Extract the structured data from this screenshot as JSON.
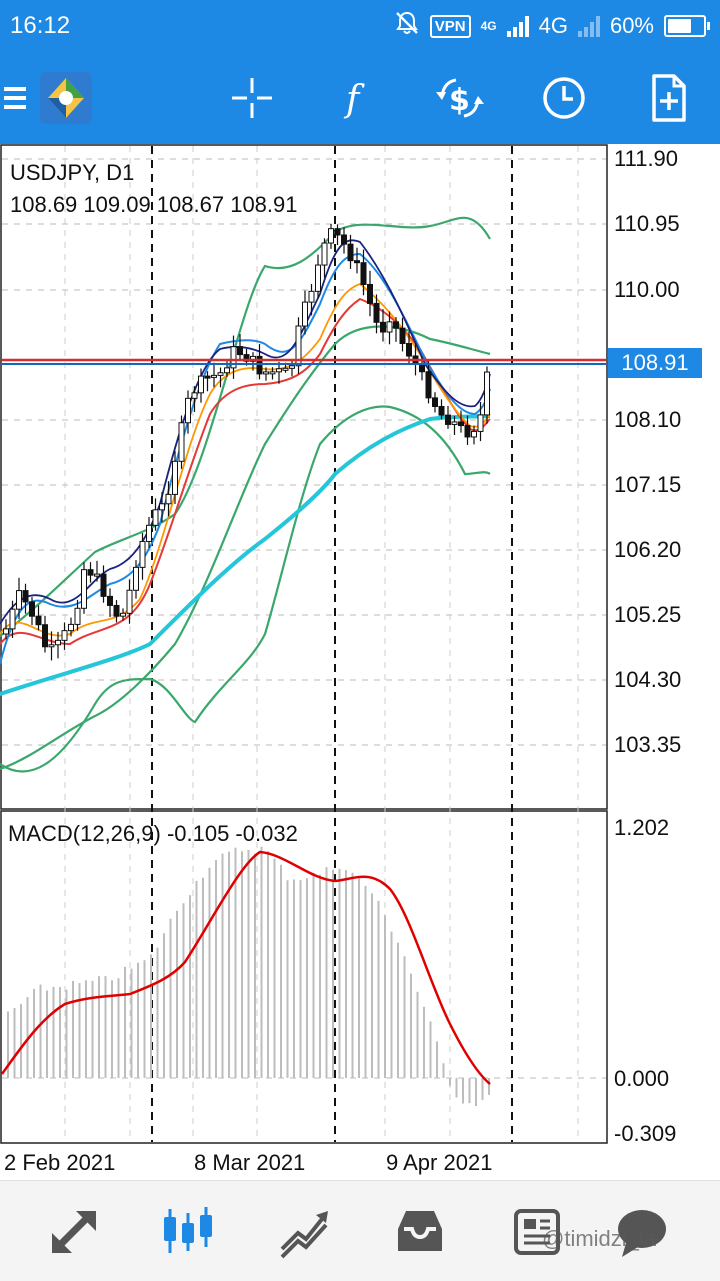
{
  "status_bar": {
    "time": "16:12",
    "vpn": "VPN",
    "network_small": "4G",
    "network": "4G",
    "battery": "60%"
  },
  "toolbar": {
    "icons": [
      "menu-icon",
      "app-logo",
      "crosshair-icon",
      "indicators-icon",
      "trade-icon",
      "timeframe-icon",
      "new-order-icon"
    ]
  },
  "chart": {
    "symbol_line": "USDJPY, D1",
    "ohlc_line": "108.69 109.09 108.67 108.91",
    "price_labels": [
      "111.90",
      "110.95",
      "110.00",
      "108.10",
      "107.15",
      "106.20",
      "105.25",
      "104.30",
      "103.35"
    ],
    "current_price": "108.91",
    "macd_label": "MACD(12,26,9) -0.105 -0.032",
    "macd_labels": [
      "1.202",
      "0.000",
      "-0.309"
    ],
    "date_labels": [
      "2 Feb 2021",
      "8 Mar 2021",
      "9 Apr 2021"
    ],
    "colors": {
      "bid_line": "#d32f2f",
      "ask_line": "#1565c0",
      "bollinger": "#3aa76d",
      "ma_slow": "#26c6da",
      "ma_red": "#e53935",
      "ma_orange": "#ff9800",
      "ma_blue": "#1e88e5",
      "ma_dark_blue": "#1a237e",
      "macd_signal": "#e00000",
      "macd_hist": "#bdbdbd",
      "price_tag": "#1e88e5"
    }
  },
  "bottom_nav": {
    "items": [
      "quotes-icon",
      "chart-icon",
      "trade-icon",
      "history-icon",
      "news-icon",
      "messages-icon"
    ],
    "watermark": "@timidzi_la"
  }
}
